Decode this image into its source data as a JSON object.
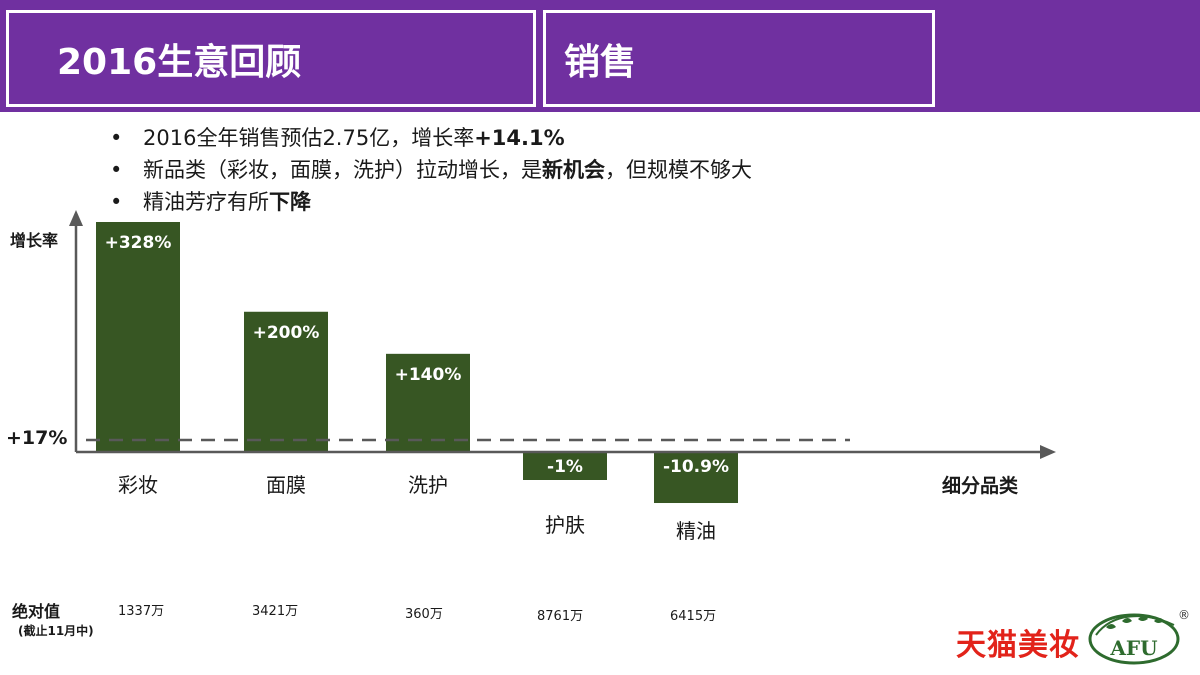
{
  "header": {
    "title": "2016生意回顾",
    "section": "销售"
  },
  "bullets": [
    {
      "text": "2016全年销售预估2.75亿，增长率",
      "bold": "+14.1%",
      "after": ""
    },
    {
      "text": "新品类（彩妆，面膜，洗护）拉动增长，是",
      "bold": "新机会",
      "after": "，但规模不够大"
    },
    {
      "text": "精油芳疗有所",
      "bold": "下降",
      "after": ""
    }
  ],
  "chart_data": {
    "type": "bar",
    "ylabel": "增长率",
    "xlabel": "细分品类",
    "categories": [
      "彩妆",
      "面膜",
      "洗护",
      "护肤",
      "精油"
    ],
    "values": [
      328,
      200,
      140,
      -1,
      -10.9
    ],
    "data_labels": [
      "+328%",
      "+200%",
      "+140%",
      "-1%",
      "-10.9%"
    ],
    "reference_line": {
      "value": 17,
      "label": "+17%",
      "style": "dashed"
    },
    "bar_color": "#375623",
    "grid": false,
    "absolute_values": {
      "title": "绝对值",
      "subtitle": "(截止11月中)",
      "values": [
        "1337万",
        "3421万",
        "360万",
        "8761万",
        "6415万"
      ]
    }
  },
  "brand": {
    "text": "天猫美妆",
    "logo_text": "AFU",
    "registered": "®",
    "color": "#e2231a"
  }
}
